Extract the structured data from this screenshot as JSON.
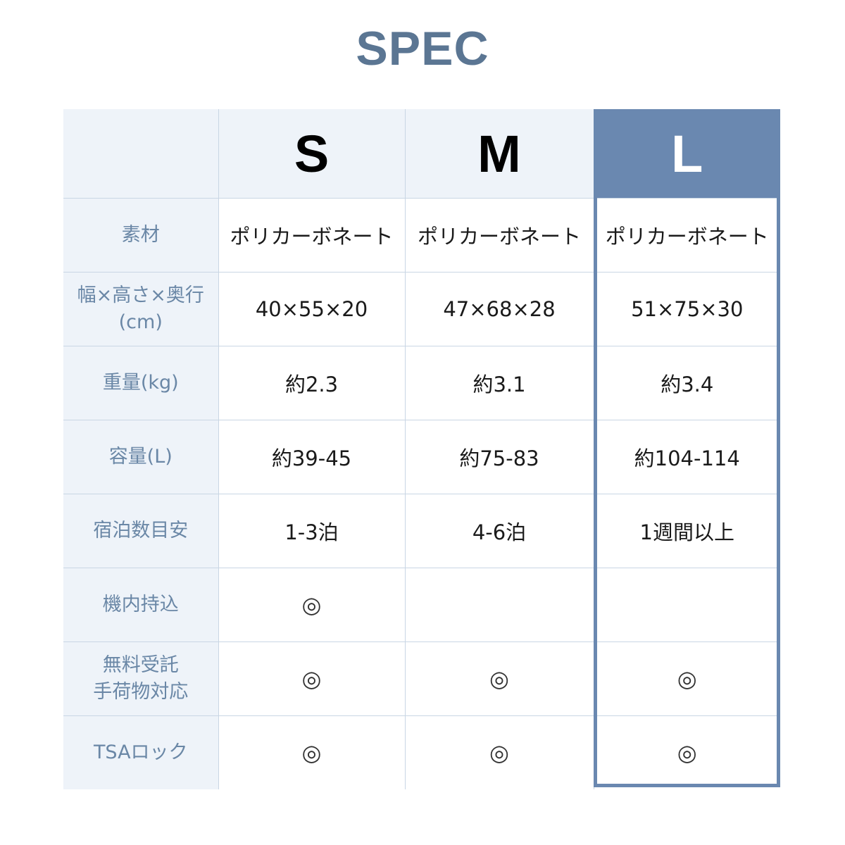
{
  "title": "SPEC",
  "colors": {
    "accent": "#6a88b0",
    "title": "#5b7693",
    "label_bg": "#eef3f9",
    "label_text": "#6a87a6"
  },
  "columns": [
    "S",
    "M",
    "L"
  ],
  "highlighted_column": "L",
  "rows": [
    {
      "label": "素材",
      "values": [
        "ポリカーボネート",
        "ポリカーボネート",
        "ポリカーボネート"
      ]
    },
    {
      "label": "幅×高さ×奥行",
      "label2": "(cm)",
      "values": [
        "40×55×20",
        "47×68×28",
        "51×75×30"
      ]
    },
    {
      "label": "重量(kg)",
      "values": [
        "約2.3",
        "約3.1",
        "約3.4"
      ]
    },
    {
      "label": "容量(L)",
      "values": [
        "約39-45",
        "約75-83",
        "約104-114"
      ]
    },
    {
      "label": "宿泊数目安",
      "values": [
        "1-3泊",
        "4-6泊",
        "1週間以上"
      ]
    },
    {
      "label": "機内持込",
      "values": [
        "◎",
        "",
        ""
      ]
    },
    {
      "label": "無料受託",
      "label2": "手荷物対応",
      "values": [
        "◎",
        "◎",
        "◎"
      ]
    },
    {
      "label": "TSAロック",
      "values": [
        "◎",
        "◎",
        "◎"
      ]
    }
  ]
}
